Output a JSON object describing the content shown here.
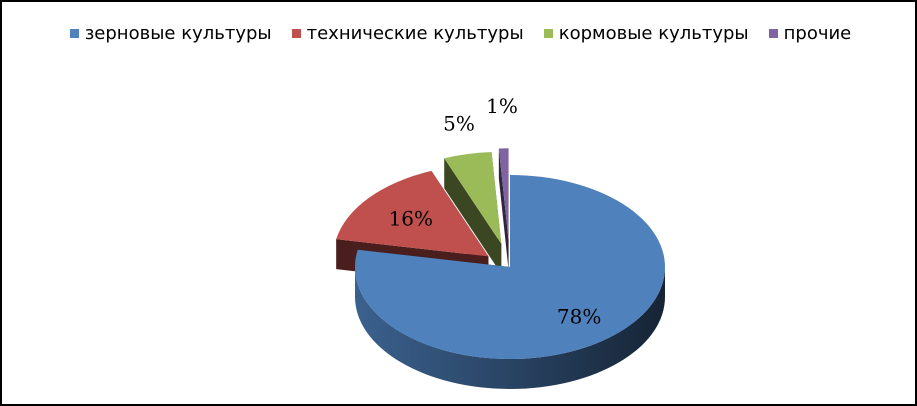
{
  "chart_data": {
    "type": "pie",
    "categories": [
      "зерновые культуры",
      "технические культуры",
      "кормовые культуры",
      "прочие"
    ],
    "values": [
      78,
      16,
      5,
      1
    ],
    "data_labels": [
      "78%",
      "16%",
      "5%",
      "1%"
    ],
    "colors": [
      "#4f81bd",
      "#c0504d",
      "#9bbb59",
      "#8064a2"
    ],
    "legend": "top",
    "exploded": true,
    "style": "3d"
  }
}
